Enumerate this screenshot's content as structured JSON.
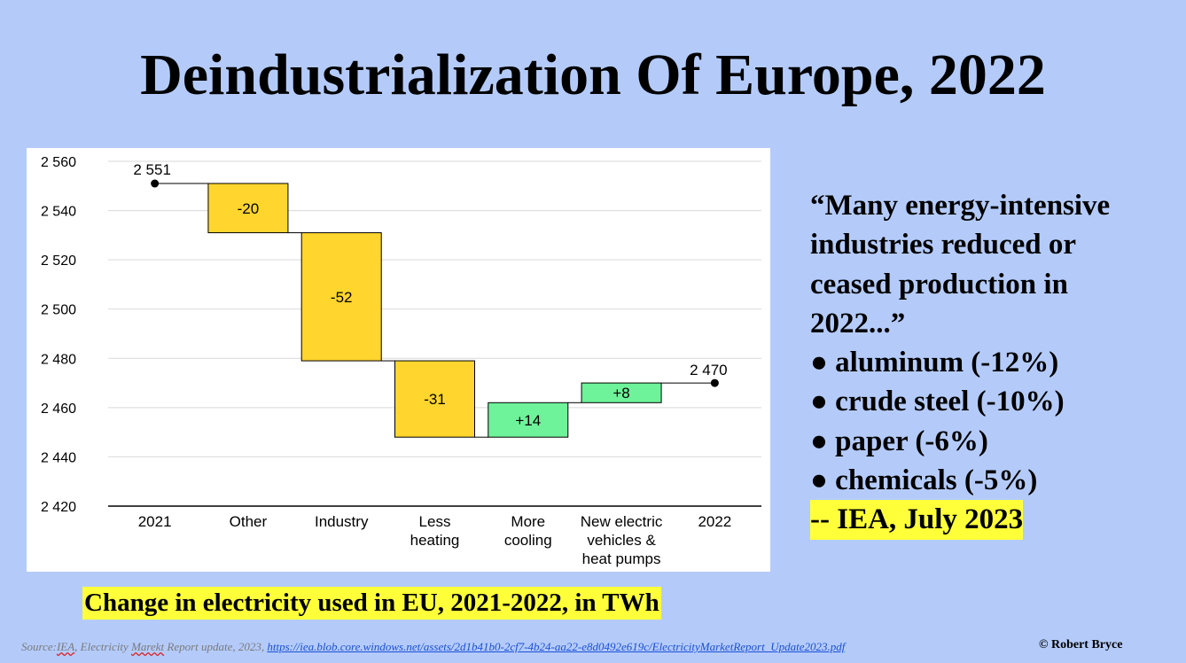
{
  "title": "Deindustrialization Of Europe, 2022",
  "caption": "Change in electricity used in EU, 2021-2022, in TWh",
  "quote": {
    "lines": [
      "“Many energy-intensive",
      "industries reduced or",
      "ceased production in",
      "2022...”"
    ],
    "bullets": [
      "● aluminum (-12%)",
      "● crude steel (-10%)",
      "● paper (-6%)",
      "● chemicals (-5%)"
    ],
    "attribution": "-- IEA, July 2023"
  },
  "source": {
    "prefix": "Source:",
    "org": "IEA",
    "text": ", Electricity ",
    "misspelled": "Marekt",
    "text_rest": " Report update, 2023, ",
    "link": "https://iea.blob.core.windows.net/assets/2d1b41b0-2cf7-4b24-aa22-e8d0492e619c/ElectricityMarketReport_Update2023.pdf"
  },
  "copyright": "© Robert Bryce",
  "colors": {
    "background": "#b4cbfa",
    "decrease": "#ffd52e",
    "increase": "#6ef29a",
    "highlight": "#ffff3a"
  },
  "chart_data": {
    "type": "bar",
    "subtype": "waterfall",
    "ylim": [
      2420,
      2560
    ],
    "yticks": [
      2420,
      2440,
      2460,
      2480,
      2500,
      2520,
      2540,
      2560
    ],
    "ytick_labels": [
      "2 420",
      "2 440",
      "2 460",
      "2 480",
      "2 500",
      "2 520",
      "2 540",
      "2 560"
    ],
    "grid": true,
    "categories": [
      [
        "2021"
      ],
      [
        "Other"
      ],
      [
        "Industry"
      ],
      [
        "Less",
        "heating"
      ],
      [
        "More",
        "cooling"
      ],
      [
        "New electric",
        "vehicles &",
        "heat pumps"
      ],
      [
        "2022"
      ]
    ],
    "start": {
      "value": 2551,
      "label": "2 551"
    },
    "end": {
      "value": 2470,
      "label": "2 470"
    },
    "steps": [
      {
        "from": 2551,
        "to": 2531,
        "label": "-20"
      },
      {
        "from": 2531,
        "to": 2479,
        "label": "-52"
      },
      {
        "from": 2479,
        "to": 2448,
        "label": "-31"
      },
      {
        "from": 2448,
        "to": 2462,
        "label": "+14"
      },
      {
        "from": 2462,
        "to": 2470,
        "label": "+8"
      }
    ]
  }
}
